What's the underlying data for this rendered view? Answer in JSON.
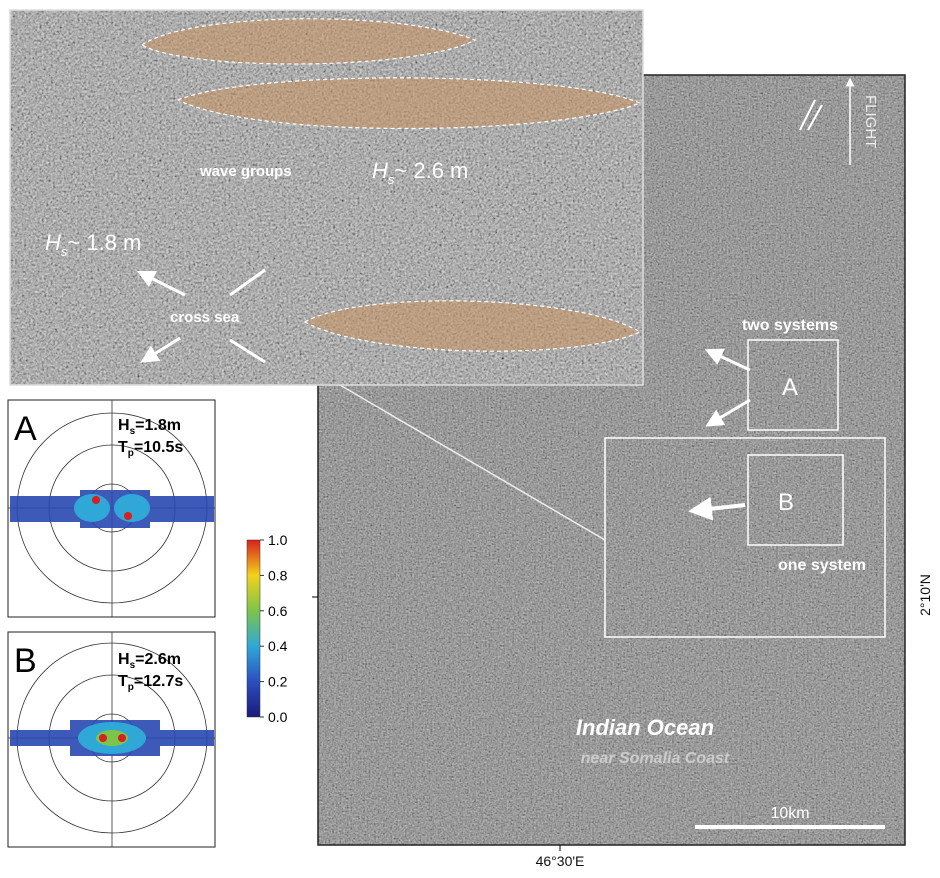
{
  "sar_image": {
    "flight_label": "FLIGHT",
    "box_a_caption": "two systems",
    "box_a_label": "A",
    "box_b_label": "B",
    "box_b_caption": "one system",
    "title": "Indian Ocean",
    "subtitle": "near Somalia Coast",
    "scale_bar": "10km",
    "latitude_label": "2°10'N",
    "longitude_label": "46°30'E"
  },
  "inset": {
    "wave_groups": "wave groups",
    "hs_groups": {
      "symbol": "H",
      "subscript": "s",
      "text": "~ 2.6 m"
    },
    "hs_cross": {
      "symbol": "H",
      "subscript": "s",
      "text": "~ 1.8 m"
    },
    "cross_sea": "cross sea"
  },
  "spectra": [
    {
      "label": "A",
      "hs": {
        "symbol": "H",
        "subscript": "s",
        "text": "=1.8m"
      },
      "tp": {
        "symbol": "T",
        "subscript": "p",
        "text": "=10.5s"
      }
    },
    {
      "label": "B",
      "hs": {
        "symbol": "H",
        "subscript": "s",
        "text": "=2.6m"
      },
      "tp": {
        "symbol": "T",
        "subscript": "p",
        "text": "=12.7s"
      }
    }
  ],
  "colorbar": {
    "ticks": [
      {
        "value": 0,
        "label": "0.0"
      },
      0.2,
      0.4,
      0.6,
      0.8,
      {
        "value": 1,
        "label": "1.0"
      }
    ]
  }
}
